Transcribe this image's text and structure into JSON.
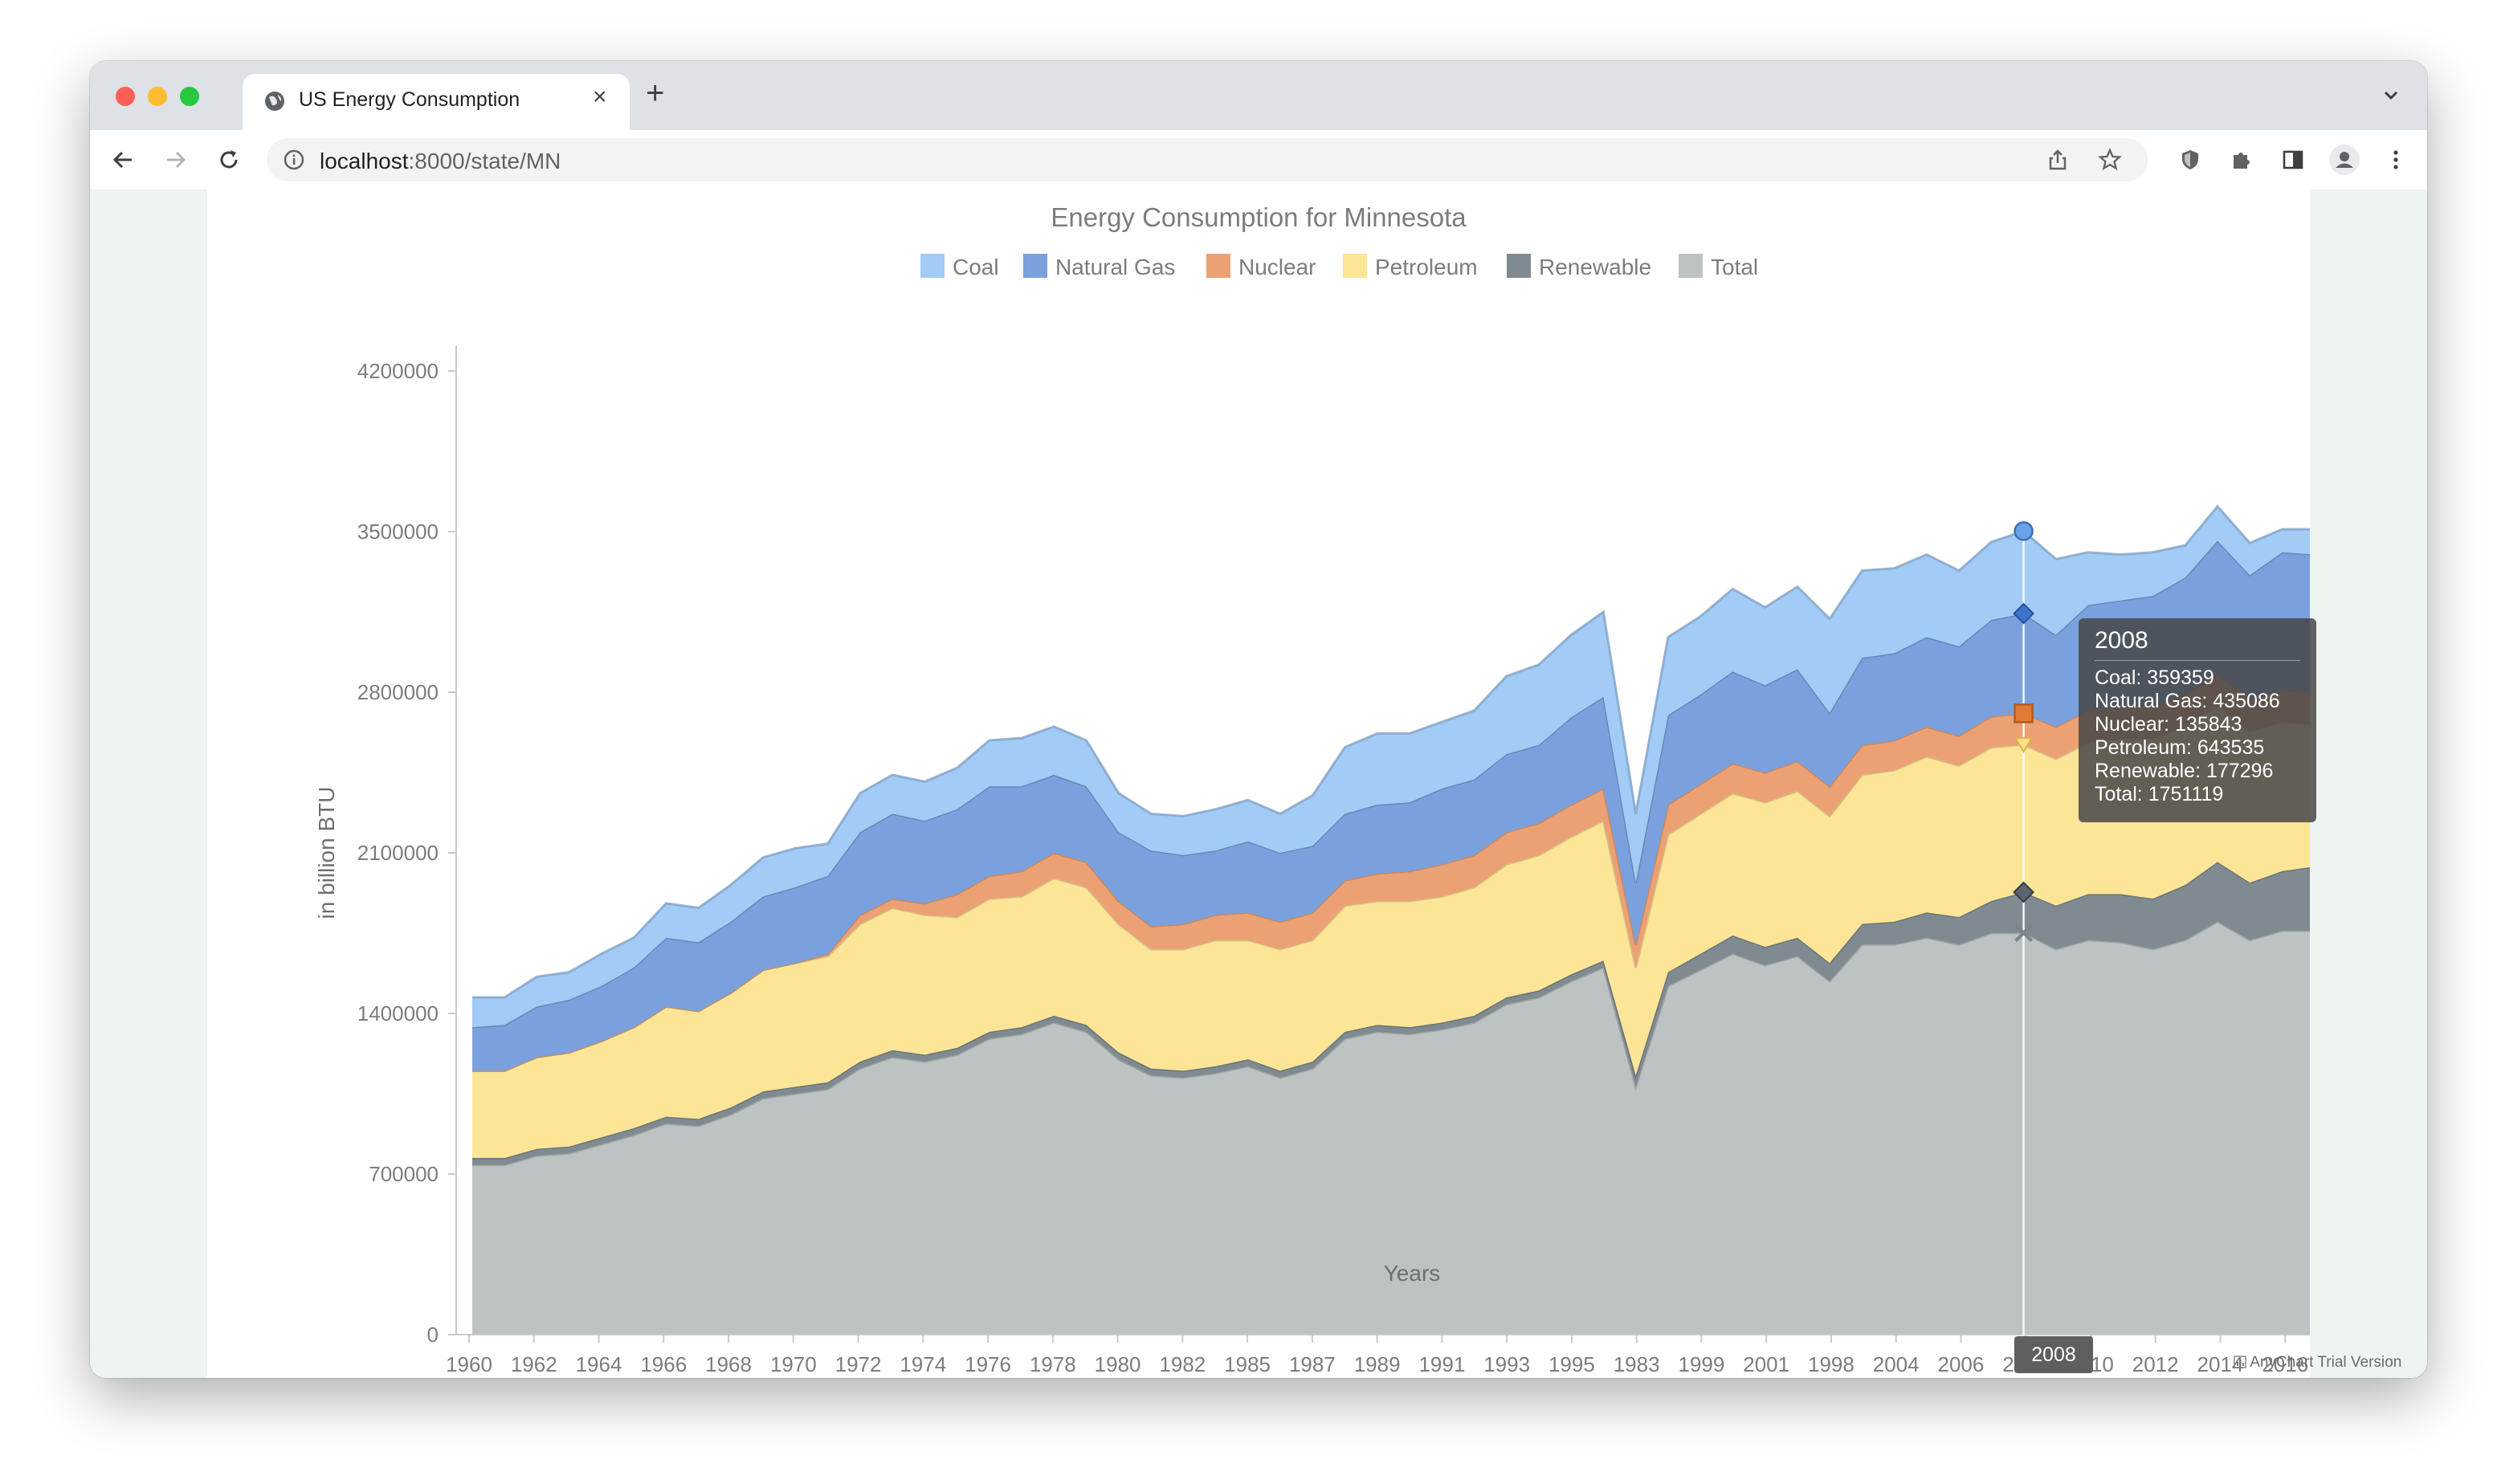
{
  "browser": {
    "tab_title": "US Energy Consumption",
    "url_host": "localhost",
    "url_path": ":8000/state/MN",
    "icons": [
      "globe-icon",
      "close-icon",
      "plus-icon",
      "chevron-down-icon",
      "back-arrow-icon",
      "forward-arrow-icon",
      "reload-icon",
      "info-icon",
      "share-icon",
      "star-icon",
      "shield-icon",
      "puzzle-icon",
      "sidebar-icon",
      "avatar-icon",
      "kebab-menu-icon"
    ],
    "colors": {
      "tabstrip": "#dee1e6",
      "close": "#ff5f57",
      "minimize": "#febc2e",
      "zoom": "#28c840"
    }
  },
  "tooltip": {
    "title": "2008",
    "lines": [
      "Coal: 359359",
      "Natural Gas: 435086",
      "Nuclear: 135843",
      "Petroleum: 643535",
      "Renewable: 177296",
      "Total: 1751119"
    ]
  },
  "crosshair_label": "2008",
  "credit": "AnyChart Trial Version",
  "chart_data": {
    "type": "area",
    "stacked": true,
    "title": "Energy Consumption for Minnesota",
    "xlabel": "Years",
    "ylabel": "in billion BTU",
    "ylim": [
      0,
      4200000
    ],
    "yticks": [
      "0",
      "700000",
      "1400000",
      "2100000",
      "2800000",
      "3500000",
      "4200000"
    ],
    "xtick_labels": [
      "1960",
      "1962",
      "1964",
      "1966",
      "1968",
      "1970",
      "1972",
      "1974",
      "1976",
      "1978",
      "1980",
      "1982",
      "1985",
      "1987",
      "1989",
      "1991",
      "1993",
      "1995",
      "1983",
      "1999",
      "2001",
      "1998",
      "2004",
      "2006",
      "2008",
      "2010",
      "2012",
      "2014",
      "2016",
      "2018"
    ],
    "legend_position": "top",
    "grid": false,
    "hover_category": "2008",
    "series": [
      {
        "name": "Total",
        "color": "#bdc3c2",
        "values": [
          740000,
          740000,
          780000,
          790000,
          830000,
          870000,
          920000,
          910000,
          960000,
          1030000,
          1050000,
          1070000,
          1160000,
          1210000,
          1190000,
          1220000,
          1290000,
          1310000,
          1360000,
          1320000,
          1200000,
          1130000,
          1120000,
          1140000,
          1170000,
          1120000,
          1160000,
          1290000,
          1320000,
          1310000,
          1330000,
          1360000,
          1440000,
          1470000,
          1540000,
          1600000,
          1080000,
          1520000,
          1590000,
          1660000,
          1610000,
          1650000,
          1540000,
          1700000,
          1700000,
          1730000,
          1700000,
          1750000,
          1751119,
          1680000,
          1720000,
          1710000,
          1680000,
          1720000,
          1800000,
          1720000,
          1760000,
          1760000,
          1820000
        ]
      },
      {
        "name": "Renewable",
        "color": "#808a91",
        "values": [
          30000,
          30000,
          30000,
          30000,
          30000,
          30000,
          30000,
          30000,
          30000,
          30000,
          30000,
          30000,
          30000,
          30000,
          30000,
          30000,
          30000,
          30000,
          30000,
          30000,
          30000,
          30000,
          30000,
          30000,
          30000,
          30000,
          30000,
          30000,
          30000,
          30000,
          30000,
          30000,
          30000,
          30000,
          30000,
          30000,
          50000,
          60000,
          70000,
          80000,
          80000,
          80000,
          80000,
          90000,
          100000,
          110000,
          120000,
          140000,
          177296,
          190000,
          200000,
          210000,
          220000,
          240000,
          260000,
          250000,
          260000,
          280000,
          300000
        ]
      },
      {
        "name": "Petroleum",
        "color": "#fce597",
        "values": [
          380000,
          380000,
          400000,
          410000,
          420000,
          440000,
          480000,
          470000,
          500000,
          530000,
          540000,
          550000,
          600000,
          620000,
          610000,
          570000,
          580000,
          570000,
          600000,
          600000,
          560000,
          520000,
          530000,
          550000,
          520000,
          530000,
          530000,
          550000,
          540000,
          550000,
          550000,
          560000,
          580000,
          590000,
          600000,
          610000,
          470000,
          600000,
          610000,
          620000,
          630000,
          640000,
          640000,
          650000,
          660000,
          680000,
          660000,
          670000,
          643535,
          640000,
          660000,
          680000,
          700000,
          690000,
          680000,
          660000,
          650000,
          620000,
          600000
        ]
      },
      {
        "name": "Nuclear",
        "color": "#eba174",
        "values": [
          0,
          0,
          0,
          0,
          0,
          0,
          0,
          0,
          0,
          0,
          0,
          10000,
          40000,
          40000,
          50000,
          100000,
          100000,
          110000,
          110000,
          110000,
          100000,
          100000,
          110000,
          110000,
          120000,
          120000,
          120000,
          110000,
          120000,
          130000,
          140000,
          140000,
          140000,
          140000,
          140000,
          140000,
          100000,
          130000,
          130000,
          130000,
          130000,
          130000,
          130000,
          130000,
          130000,
          130000,
          130000,
          135000,
          135843,
          140000,
          140000,
          140000,
          140000,
          140000,
          140000,
          140000,
          140000,
          140000,
          140000
        ]
      },
      {
        "name": "Natural Gas",
        "color": "#7aa1dd",
        "values": [
          190000,
          200000,
          220000,
          230000,
          240000,
          260000,
          300000,
          300000,
          310000,
          320000,
          330000,
          340000,
          360000,
          370000,
          360000,
          370000,
          390000,
          370000,
          340000,
          330000,
          300000,
          330000,
          300000,
          280000,
          310000,
          300000,
          290000,
          290000,
          300000,
          300000,
          330000,
          330000,
          340000,
          340000,
          380000,
          400000,
          270000,
          390000,
          390000,
          400000,
          380000,
          400000,
          320000,
          380000,
          380000,
          390000,
          390000,
          420000,
          435086,
          400000,
          460000,
          460000,
          480000,
          510000,
          580000,
          540000,
          600000,
          600000,
          540000
        ]
      },
      {
        "name": "Coal",
        "color": "#a2cbf6",
        "values": [
          130000,
          120000,
          130000,
          120000,
          140000,
          130000,
          150000,
          150000,
          160000,
          170000,
          170000,
          140000,
          170000,
          170000,
          170000,
          180000,
          200000,
          210000,
          210000,
          200000,
          170000,
          160000,
          170000,
          180000,
          180000,
          170000,
          220000,
          290000,
          310000,
          300000,
          290000,
          300000,
          340000,
          350000,
          360000,
          370000,
          300000,
          340000,
          340000,
          360000,
          340000,
          360000,
          410000,
          380000,
          370000,
          360000,
          330000,
          340000,
          359359,
          330000,
          230000,
          200000,
          190000,
          140000,
          150000,
          140000,
          100000,
          110000,
          130000
        ]
      }
    ]
  }
}
